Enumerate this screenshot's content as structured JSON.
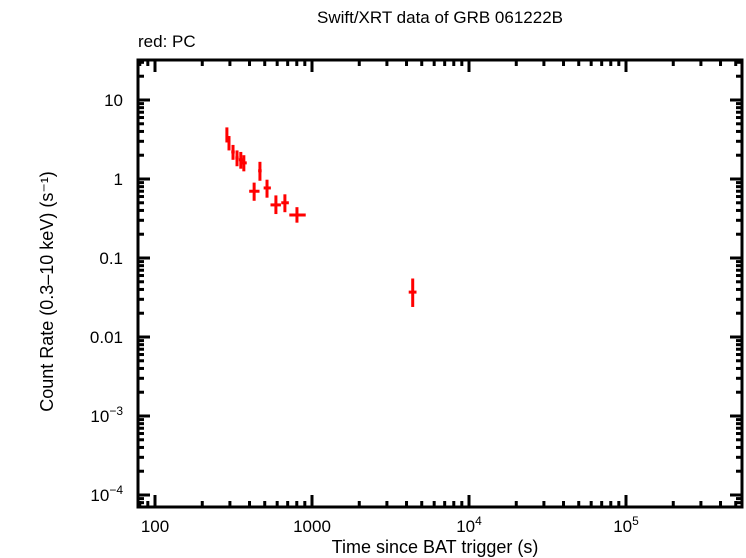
{
  "chart_data": {
    "type": "scatter",
    "title": "Swift/XRT data of GRB 061222B",
    "subtitle": "red: PC",
    "xlabel": "Time since BAT trigger (s)",
    "ylabel": "Count Rate (0.3–10 keV) (s⁻¹)",
    "xscale": "log",
    "yscale": "log",
    "xlim": [
      70,
      600000
    ],
    "ylim": [
      7e-05,
      30
    ],
    "x_ticks": [
      "100",
      "1000",
      "10⁴",
      "10⁵"
    ],
    "y_ticks": [
      "10",
      "1",
      "0.1",
      "0.01",
      "10⁻³",
      "10⁻⁴"
    ],
    "grid": false,
    "legend": "none",
    "series": [
      {
        "name": "PC",
        "color": "#ff0000",
        "points": [
          {
            "t": 287,
            "rate": 3.6,
            "terr_lo": 3,
            "terr_hi": 3,
            "rate_lo": 2.9,
            "rate_hi": 4.5
          },
          {
            "t": 296,
            "rate": 2.85,
            "terr_lo": 4,
            "terr_hi": 4,
            "rate_lo": 2.3,
            "rate_hi": 3.5
          },
          {
            "t": 314,
            "rate": 2.2,
            "terr_lo": 8,
            "terr_hi": 8,
            "rate_lo": 1.75,
            "rate_hi": 2.7
          },
          {
            "t": 333,
            "rate": 1.85,
            "terr_lo": 8,
            "terr_hi": 8,
            "rate_lo": 1.45,
            "rate_hi": 2.3
          },
          {
            "t": 352,
            "rate": 1.75,
            "terr_lo": 10,
            "terr_hi": 10,
            "rate_lo": 1.35,
            "rate_hi": 2.2
          },
          {
            "t": 368,
            "rate": 1.6,
            "terr_lo": 12,
            "terr_hi": 16,
            "rate_lo": 1.25,
            "rate_hi": 2.0
          },
          {
            "t": 428,
            "rate": 0.7,
            "terr_lo": 30,
            "terr_hi": 35,
            "rate_lo": 0.53,
            "rate_hi": 0.9
          },
          {
            "t": 466,
            "rate": 1.27,
            "terr_lo": 12,
            "terr_hi": 12,
            "rate_lo": 0.95,
            "rate_hi": 1.65
          },
          {
            "t": 517,
            "rate": 0.77,
            "terr_lo": 25,
            "terr_hi": 30,
            "rate_lo": 0.58,
            "rate_hi": 0.98
          },
          {
            "t": 589,
            "rate": 0.47,
            "terr_lo": 45,
            "terr_hi": 45,
            "rate_lo": 0.36,
            "rate_hi": 0.62
          },
          {
            "t": 672,
            "rate": 0.5,
            "terr_lo": 35,
            "terr_hi": 40,
            "rate_lo": 0.38,
            "rate_hi": 0.64
          },
          {
            "t": 802,
            "rate": 0.35,
            "terr_lo": 85,
            "terr_hi": 110,
            "rate_lo": 0.28,
            "rate_hi": 0.44
          },
          {
            "t": 4380,
            "rate": 0.037,
            "terr_lo": 250,
            "terr_hi": 250,
            "rate_lo": 0.024,
            "rate_hi": 0.055
          }
        ]
      }
    ]
  }
}
